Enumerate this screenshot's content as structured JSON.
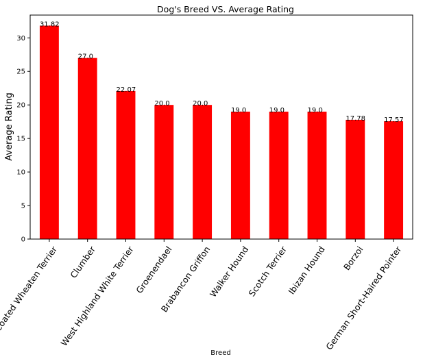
{
  "chart_data": {
    "type": "bar",
    "title": "Dog's Breed VS. Average Rating",
    "xlabel": "Breed",
    "ylabel": "Average Rating",
    "categories": [
      "Soft-Coated Wheaten Terrier",
      "Clumber",
      "West Highland White Terrier",
      "Groenendael",
      "Brabancon Griffon",
      "Walker Hound",
      "Scotch Terrier",
      "Ibizan Hound",
      "Borzoi",
      "German Short-Haired Pointer"
    ],
    "values": [
      31.82,
      27.0,
      22.07,
      20.0,
      20.0,
      19.0,
      19.0,
      19.0,
      17.78,
      17.57
    ],
    "value_labels": [
      "31.82",
      "27.0",
      "22.07",
      "20.0",
      "20.0",
      "19.0",
      "19.0",
      "19.0",
      "17.78",
      "17.57"
    ],
    "ylim": [
      0,
      33.4
    ],
    "yticks": [
      0,
      5,
      10,
      15,
      20,
      25,
      30
    ],
    "bar_color": "#ff0000",
    "grid": false,
    "legend": "none"
  }
}
